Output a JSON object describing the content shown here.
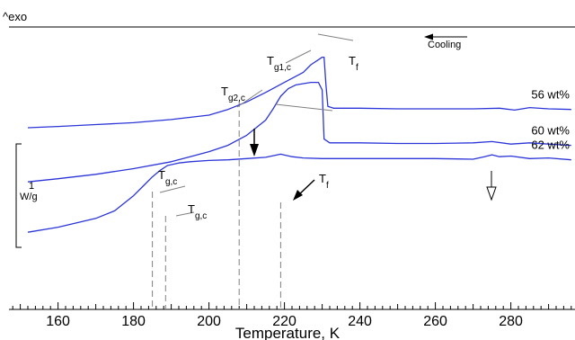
{
  "chart_data": {
    "type": "line",
    "exo_label": "^exo",
    "cooling_label": "Cooling",
    "xlabel": "Temperature, K",
    "xlim": [
      147,
      297
    ],
    "xticks": [
      160,
      180,
      200,
      220,
      240,
      260,
      280
    ],
    "scale_bar": {
      "value": "1",
      "unit": "W/g"
    },
    "series": [
      {
        "name": "56 wt%",
        "x": [
          152,
          160,
          170,
          180,
          190,
          200,
          205,
          210,
          215,
          220,
          225,
          227,
          229,
          230,
          230.5,
          231,
          231.5,
          233,
          236,
          240,
          250,
          260,
          270,
          277,
          281,
          285,
          290,
          296
        ],
        "y": [
          8.0,
          7.9,
          7.75,
          7.6,
          7.35,
          7.0,
          6.55,
          5.95,
          5.2,
          4.4,
          3.6,
          3.0,
          2.6,
          2.4,
          2.4,
          4.6,
          6.3,
          6.45,
          6.45,
          6.45,
          6.5,
          6.5,
          6.5,
          6.45,
          6.6,
          6.4,
          6.5,
          6.55
        ]
      },
      {
        "name": "60 wt%",
        "x": [
          152,
          160,
          170,
          180,
          190,
          195,
          200,
          205,
          210,
          215,
          217,
          219,
          221,
          223,
          225,
          227,
          228,
          229,
          230,
          230.5,
          232,
          236,
          240,
          250,
          260,
          270,
          275,
          280,
          285,
          290,
          296
        ],
        "y": [
          12.3,
          12.05,
          11.7,
          11.25,
          10.7,
          10.3,
          9.9,
          9.4,
          8.6,
          7.4,
          6.5,
          5.5,
          4.9,
          4.6,
          4.5,
          4.4,
          4.4,
          4.4,
          5.0,
          8.9,
          9.2,
          9.2,
          9.2,
          9.25,
          9.25,
          9.2,
          9.1,
          9.3,
          9.2,
          9.3,
          9.4
        ]
      },
      {
        "name": "62 wt%",
        "x": [
          152,
          160,
          170,
          175,
          180,
          183,
          185,
          187,
          189,
          192,
          195,
          200,
          205,
          210,
          215,
          219,
          222,
          225,
          230,
          240,
          250,
          260,
          270,
          273,
          275,
          277,
          280,
          285,
          290,
          296
        ],
        "y": [
          16.3,
          15.9,
          15.2,
          14.6,
          13.4,
          12.5,
          11.9,
          11.4,
          11.0,
          10.8,
          10.7,
          10.6,
          10.55,
          10.45,
          10.35,
          10.1,
          10.3,
          10.4,
          10.45,
          10.45,
          10.45,
          10.45,
          10.5,
          10.3,
          10.15,
          10.3,
          10.25,
          10.45,
          10.4,
          10.55
        ]
      }
    ],
    "markers": {
      "tg1c": "Tg1,c",
      "tg2c": "Tg2,c",
      "tf_top": "Tf",
      "tf_mid": "Tf",
      "tgc_60": "Tg,c",
      "tgc_62": "Tg,c"
    },
    "dashed_lines": [
      185,
      188.5,
      208,
      219
    ],
    "colors": {
      "series": "#2b35d8",
      "axis": "#000000",
      "annotation": "#808080"
    },
    "legend_placement": "right-of-curves",
    "grid": false
  }
}
